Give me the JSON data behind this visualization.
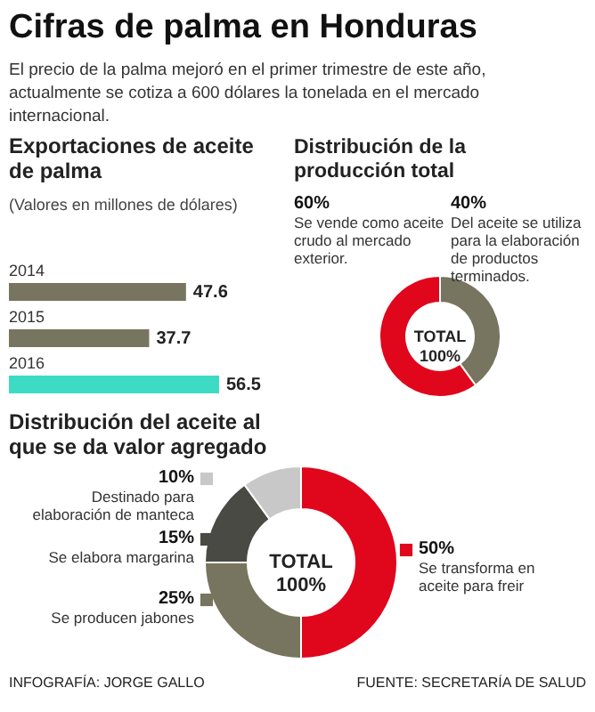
{
  "chart_data": [
    {
      "type": "other",
      "title": "Cifras de palma en Honduras",
      "subtitle": "El precio de la palma mejoró en el primer trimestre de este año, actualmente se cotiza a 600 dólares la tonelada en el mercado internacional.",
      "annotations": [
        "INFOGRAFÍA: JORGE GALLO",
        "FUENTE: SECRETARÍA DE SALUD"
      ]
    },
    {
      "type": "bar",
      "orientation": "horizontal",
      "title": "Exportaciones de aceite de palma",
      "subtitle": "(Valores en millones de dólares)",
      "categories": [
        "2014",
        "2015",
        "2016"
      ],
      "values": [
        47.6,
        37.7,
        56.5
      ],
      "colors": [
        "#77755f",
        "#77755f",
        "#3ddbc4"
      ],
      "data_labels": true
    },
    {
      "type": "donut",
      "title": "Distribución de la producción total",
      "categories": [
        "Del aceite se utiliza para la elaboración de productos terminados.",
        "Se vende como aceite crudo al mercado exterior."
      ],
      "values": [
        40,
        60
      ],
      "colors": [
        "#77755f",
        "#e0061b"
      ],
      "value_labels": [
        "40%",
        "60%"
      ],
      "annotations": [
        "TOTAL 100%"
      ]
    },
    {
      "type": "donut",
      "title": "Distribución del aceite al que se da valor agregado",
      "categories": [
        "Se transforma en aceite para freir",
        "Se producen jabones",
        "Se elabora margarina",
        "Destinado para elaboración de manteca"
      ],
      "values": [
        50,
        25,
        15,
        10
      ],
      "colors": [
        "#e0061b",
        "#77755f",
        "#4a4a45",
        "#c8c8c8"
      ],
      "value_labels": [
        "50%",
        "25%",
        "15%",
        "10%"
      ],
      "annotations": [
        "TOTAL 100%"
      ],
      "legend": "left"
    }
  ]
}
